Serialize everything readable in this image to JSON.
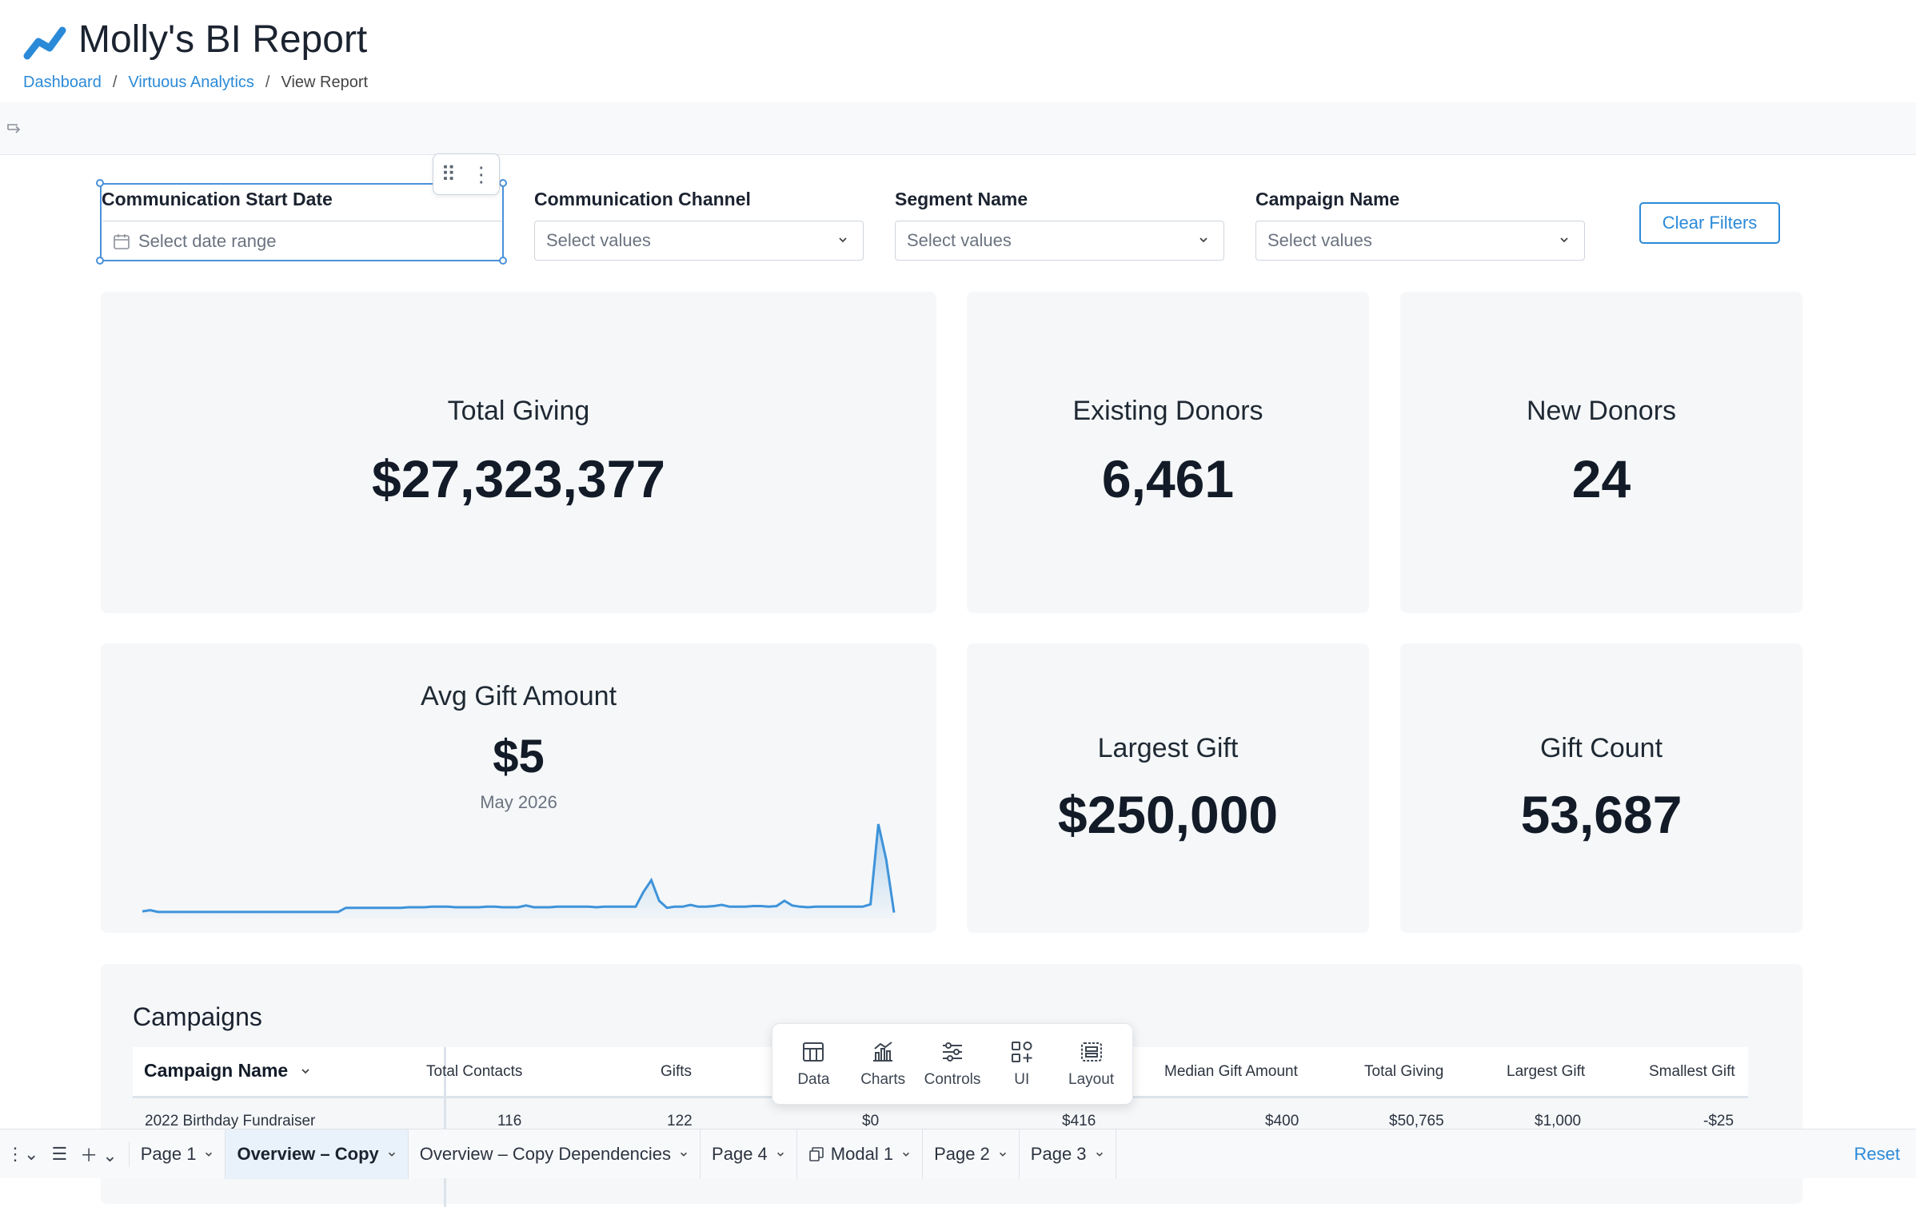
{
  "header": {
    "title": "Molly's BI Report",
    "breadcrumb": [
      "Dashboard",
      "Virtuous Analytics",
      "View Report"
    ]
  },
  "filters": [
    {
      "label": "Communication Start Date",
      "placeholder": "Select date range"
    },
    {
      "label": "Communication Channel",
      "placeholder": "Select values"
    },
    {
      "label": "Segment Name",
      "placeholder": "Select values"
    },
    {
      "label": "Campaign Name",
      "placeholder": "Select values"
    }
  ],
  "clear_filters": "Clear Filters",
  "kpis": {
    "total_giving": {
      "title": "Total Giving",
      "value": "$27,323,377"
    },
    "existing_donors": {
      "title": "Existing Donors",
      "value": "6,461"
    },
    "new_donors": {
      "title": "New Donors",
      "value": "24"
    },
    "avg_gift": {
      "title": "Avg Gift Amount",
      "value": "$5",
      "sub": "May 2026"
    },
    "largest_gift": {
      "title": "Largest Gift",
      "value": "$250,000"
    },
    "gift_count": {
      "title": "Gift Count",
      "value": "53,687"
    }
  },
  "chart_data": {
    "type": "area",
    "title": "",
    "series": [
      {
        "values": [
          1.2,
          1.4,
          1.1,
          1.1,
          1.1,
          1.1,
          1.1,
          1.1,
          1.1,
          1.1,
          1.1,
          1.1,
          1.1,
          1.1,
          1.1,
          1.1,
          1.1,
          1.1,
          1.1,
          1.1,
          1.1,
          1.1,
          1.1,
          1.1,
          1.1,
          1.1,
          1.8,
          1.8,
          1.8,
          1.8,
          1.8,
          1.8,
          1.8,
          1.8,
          1.9,
          1.9,
          1.9,
          2.0,
          2.0,
          2.0,
          1.9,
          1.9,
          1.9,
          1.9,
          2.0,
          2.0,
          1.9,
          1.9,
          1.9,
          2.2,
          1.9,
          1.9,
          1.9,
          2.0,
          2.0,
          2.0,
          2.0,
          2.0,
          1.9,
          2.0,
          2.0,
          2.0,
          2.0,
          2.0,
          4.5,
          6.5,
          3.0,
          1.8,
          2.0,
          2.0,
          2.3,
          2.0,
          2.0,
          2.1,
          2.3,
          2.0,
          2.0,
          2.0,
          2.1,
          2.1,
          2.0,
          2.1,
          3.0,
          2.2,
          2.0,
          1.9,
          2.0,
          2.0,
          2.0,
          2.0,
          2.0,
          2.0,
          2.0,
          2.4,
          16.0,
          10.0,
          1.0
        ]
      }
    ]
  },
  "table": {
    "title": "Campaigns",
    "columns": [
      "Campaign Name",
      "Total Contacts",
      "Gifts",
      "",
      "",
      "Median Gift Amount",
      "Total Giving",
      "Largest Gift",
      "Smallest Gift"
    ],
    "rows": [
      [
        "2022 Birthday Fundraiser",
        "116",
        "122",
        "$0",
        "$416",
        "$400",
        "$50,765",
        "$1,000",
        "-$25"
      ]
    ]
  },
  "floating_toolbar": [
    "Data",
    "Charts",
    "Controls",
    "UI",
    "Layout"
  ],
  "pages": [
    {
      "label": "Page 1",
      "active": false
    },
    {
      "label": "Overview – Copy",
      "active": true
    },
    {
      "label": "Overview – Copy Dependencies",
      "active": false
    },
    {
      "label": "Page 4",
      "active": false
    },
    {
      "label": "Modal 1",
      "active": false
    },
    {
      "label": "Page 2",
      "active": false
    },
    {
      "label": "Page 3",
      "active": false
    }
  ],
  "reset": "Reset",
  "colors": {
    "accent": "#2b8ad8",
    "card": "#f5f7f9",
    "line": "#3e93da"
  }
}
